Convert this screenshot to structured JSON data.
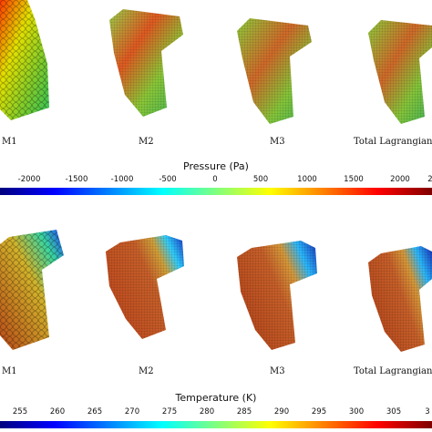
{
  "top_row": {
    "captions": [
      "M1",
      "M2",
      "M3",
      "Total Lagrangian S"
    ]
  },
  "pressure_bar": {
    "title": "Pressure (Pa)",
    "ticks": [
      "-2000",
      "-1500",
      "-1000",
      "-500",
      "0",
      "500",
      "1000",
      "1500",
      "2000",
      "2"
    ]
  },
  "bottom_row": {
    "captions": [
      "M1",
      "M2",
      "M3",
      "Total Lagrangian S"
    ]
  },
  "temperature_bar": {
    "title": "Temperature (K)",
    "ticks": [
      "255",
      "260",
      "265",
      "270",
      "275",
      "280",
      "285",
      "290",
      "295",
      "300",
      "305",
      "3"
    ]
  },
  "colors": {
    "jet": [
      "#00007f",
      "#0000ff",
      "#007fff",
      "#00ffff",
      "#7fff7f",
      "#ffff00",
      "#ff7f00",
      "#ff0000",
      "#7f0000"
    ]
  }
}
